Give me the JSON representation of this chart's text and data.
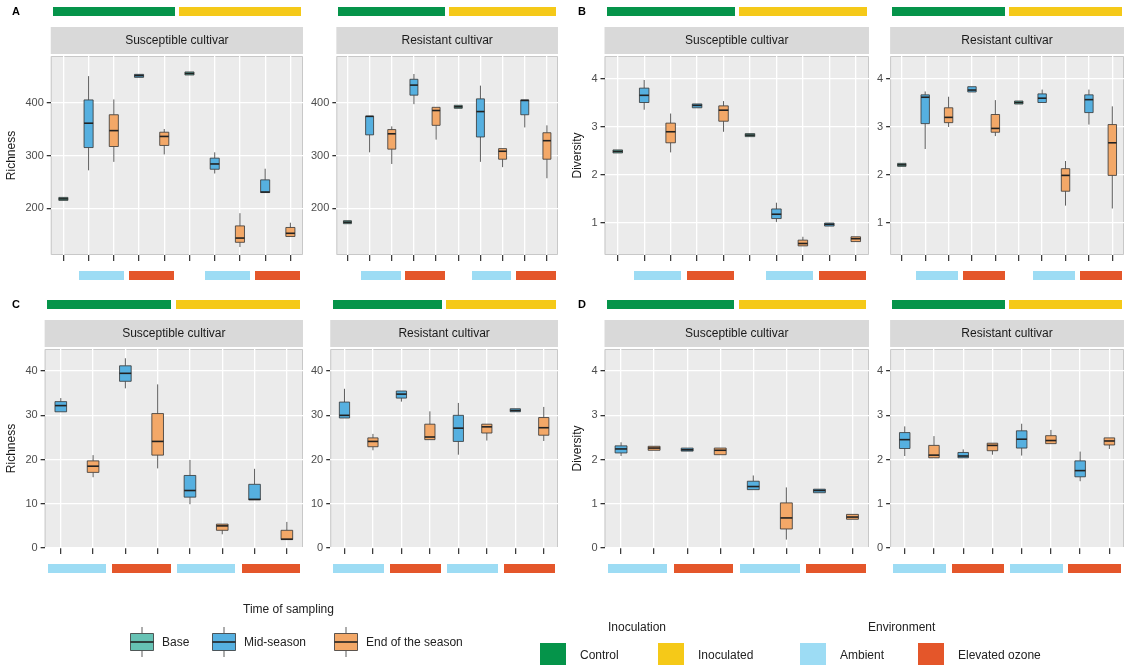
{
  "chart_data": [
    {
      "type": "box",
      "title": "Susceptible cultivar",
      "ylabel": "Richness",
      "annotations": [
        "A"
      ],
      "categories": [
        null,
        null,
        null,
        null,
        null,
        null,
        null,
        null,
        null,
        null
      ],
      "ylim": [
        112,
        488
      ],
      "yticks": [
        200,
        300,
        400
      ],
      "grid": true,
      "tick_labels": "y",
      "legend": "bottom",
      "legend_title": "Time of sampling",
      "series": [
        {
          "name": "Base",
          "color": "#66c2b4",
          "boxes": [
            {
              "low": 218,
              "q1": 218,
              "median": 218,
              "q3": 218,
              "high": 218
            },
            null,
            null,
            null,
            null,
            {
              "low": 455,
              "q1": 455,
              "median": 455,
              "q3": 455,
              "high": 455
            },
            null,
            null,
            null,
            null
          ]
        },
        {
          "name": "Mid-season",
          "color": "#56b0e0",
          "boxes": [
            null,
            {
              "low": 272,
              "q1": 315,
              "median": 361,
              "q3": 405,
              "high": 450
            },
            null,
            {
              "low": 449,
              "q1": 449,
              "median": 451,
              "q3": 452,
              "high": 452
            },
            null,
            null,
            {
              "low": 266,
              "q1": 274,
              "median": 284,
              "q3": 295,
              "high": 306
            },
            null,
            {
              "low": 230,
              "q1": 230,
              "median": 231,
              "q3": 254,
              "high": 275
            },
            null
          ]
        },
        {
          "name": "End of the season",
          "color": "#f3a868",
          "boxes": [
            null,
            null,
            {
              "low": 288,
              "q1": 317,
              "median": 347,
              "q3": 377,
              "high": 406
            },
            null,
            {
              "low": 302,
              "q1": 319,
              "median": 336,
              "q3": 344,
              "high": 350
            },
            null,
            null,
            {
              "low": 127,
              "q1": 136,
              "median": 144,
              "q3": 167,
              "high": 191
            },
            null,
            {
              "low": 147,
              "q1": 147,
              "median": 153,
              "q3": 164,
              "high": 173
            }
          ]
        }
      ]
    },
    {
      "type": "box",
      "title": "Resistant cultivar",
      "categories": [
        null,
        null,
        null,
        null,
        null,
        null,
        null,
        null,
        null,
        null
      ],
      "ylim": [
        112,
        488
      ],
      "yticks": [
        200,
        300,
        400
      ],
      "grid": true,
      "tick_labels": "y",
      "series": [
        {
          "color": "#66c2b4",
          "boxes": [
            {
              "low": 174,
              "q1": 174,
              "median": 174,
              "q3": 174,
              "high": 174
            },
            null,
            null,
            null,
            null,
            {
              "low": 392,
              "q1": 392,
              "median": 392,
              "q3": 392,
              "high": 392
            },
            null,
            null,
            null,
            null
          ]
        },
        {
          "color": "#56b0e0",
          "boxes": [
            null,
            {
              "low": 306,
              "q1": 339,
              "median": 374,
              "q3": 374,
              "high": 374
            },
            null,
            {
              "low": 397,
              "q1": 414,
              "median": 433,
              "q3": 444,
              "high": 454
            },
            null,
            null,
            {
              "low": 288,
              "q1": 335,
              "median": 383,
              "q3": 407,
              "high": 432
            },
            null,
            {
              "low": 353,
              "q1": 377,
              "median": 404,
              "q3": 405,
              "high": 405
            },
            null
          ]
        },
        {
          "color": "#f3a868",
          "boxes": [
            null,
            null,
            {
              "low": 284,
              "q1": 312,
              "median": 341,
              "q3": 349,
              "high": 355
            },
            null,
            {
              "low": 330,
              "q1": 357,
              "median": 385,
              "q3": 391,
              "high": 391
            },
            null,
            null,
            {
              "low": 278,
              "q1": 293,
              "median": 308,
              "q3": 313,
              "high": 313
            },
            null,
            {
              "low": 257,
              "q1": 293,
              "median": 328,
              "q3": 343,
              "high": 357
            }
          ]
        }
      ]
    },
    {
      "type": "box",
      "title": "Susceptible cultivar",
      "ylabel": "Diversity",
      "annotations": [
        "B"
      ],
      "categories": [
        null,
        null,
        null,
        null,
        null,
        null,
        null,
        null,
        null,
        null
      ],
      "ylim": [
        0.33,
        4.48
      ],
      "yticks": [
        1,
        2,
        3,
        4
      ],
      "grid": true,
      "tick_labels": "y",
      "series": [
        {
          "color": "#66c2b4",
          "boxes": [
            {
              "low": 2.49,
              "q1": 2.49,
              "median": 2.49,
              "q3": 2.49,
              "high": 2.49
            },
            null,
            null,
            null,
            null,
            {
              "low": 2.83,
              "q1": 2.83,
              "median": 2.83,
              "q3": 2.83,
              "high": 2.83
            },
            null,
            null,
            null,
            null
          ]
        },
        {
          "color": "#56b0e0",
          "boxes": [
            null,
            {
              "low": 3.36,
              "q1": 3.51,
              "median": 3.66,
              "q3": 3.81,
              "high": 3.98
            },
            null,
            {
              "low": 3.4,
              "q1": 3.4,
              "median": 3.45,
              "q3": 3.48,
              "high": 3.48
            },
            null,
            null,
            {
              "low": 1.02,
              "q1": 1.09,
              "median": 1.18,
              "q3": 1.29,
              "high": 1.42
            },
            null,
            {
              "low": 0.94,
              "q1": 0.94,
              "median": 0.97,
              "q3": 0.99,
              "high": 0.99
            },
            null
          ]
        },
        {
          "color": "#f3a868",
          "boxes": [
            null,
            null,
            {
              "low": 2.47,
              "q1": 2.67,
              "median": 2.9,
              "q3": 3.08,
              "high": 3.28
            },
            null,
            {
              "low": 2.9,
              "q1": 3.12,
              "median": 3.35,
              "q3": 3.44,
              "high": 3.54
            },
            null,
            null,
            {
              "low": 0.52,
              "q1": 0.52,
              "median": 0.57,
              "q3": 0.64,
              "high": 0.71
            },
            null,
            {
              "low": 0.61,
              "q1": 0.61,
              "median": 0.67,
              "q3": 0.71,
              "high": 0.71
            }
          ]
        }
      ]
    },
    {
      "type": "box",
      "title": "Resistant cultivar",
      "categories": [
        null,
        null,
        null,
        null,
        null,
        null,
        null,
        null,
        null,
        null
      ],
      "ylim": [
        0.33,
        4.48
      ],
      "yticks": [
        1,
        2,
        3,
        4
      ],
      "grid": true,
      "tick_labels": "y",
      "series": [
        {
          "color": "#66c2b4",
          "boxes": [
            {
              "low": 2.21,
              "q1": 2.21,
              "median": 2.21,
              "q3": 2.21,
              "high": 2.21
            },
            null,
            null,
            null,
            null,
            {
              "low": 3.51,
              "q1": 3.51,
              "median": 3.51,
              "q3": 3.51,
              "high": 3.51
            },
            null,
            null,
            null,
            null
          ]
        },
        {
          "color": "#56b0e0",
          "boxes": [
            null,
            {
              "low": 2.54,
              "q1": 3.07,
              "median": 3.62,
              "q3": 3.67,
              "high": 3.74
            },
            null,
            {
              "low": 3.73,
              "q1": 3.73,
              "median": 3.77,
              "q3": 3.84,
              "high": 3.84
            },
            null,
            null,
            {
              "low": 3.51,
              "q1": 3.51,
              "median": 3.6,
              "q3": 3.69,
              "high": 3.78
            },
            null,
            {
              "low": 3.05,
              "q1": 3.3,
              "median": 3.57,
              "q3": 3.67,
              "high": 3.78
            },
            null
          ]
        },
        {
          "color": "#f3a868",
          "boxes": [
            null,
            null,
            {
              "low": 3.0,
              "q1": 3.09,
              "median": 3.2,
              "q3": 3.4,
              "high": 3.63
            },
            null,
            {
              "low": 2.81,
              "q1": 2.89,
              "median": 2.97,
              "q3": 3.26,
              "high": 3.56
            },
            null,
            null,
            {
              "low": 1.36,
              "q1": 1.66,
              "median": 1.99,
              "q3": 2.13,
              "high": 2.29
            },
            null,
            {
              "low": 1.3,
              "q1": 1.99,
              "median": 2.67,
              "q3": 3.05,
              "high": 3.43
            }
          ]
        }
      ]
    },
    {
      "type": "box",
      "title": "Susceptible cultivar",
      "ylabel": "Richness",
      "annotations": [
        "C"
      ],
      "categories": [
        null,
        null,
        null,
        null,
        null,
        null,
        null,
        null
      ],
      "ylim": [
        0,
        45
      ],
      "yticks": [
        0,
        10,
        20,
        30,
        40
      ],
      "grid": true,
      "tick_labels": "y",
      "series": [
        {
          "color": "#56b0e0",
          "boxes": [
            {
              "low": 30.8,
              "q1": 30.8,
              "median": 32.2,
              "q3": 33.1,
              "high": 33.9
            },
            null,
            {
              "low": 36.1,
              "q1": 37.7,
              "median": 39.5,
              "q3": 41.2,
              "high": 42.9
            },
            null,
            {
              "low": 9.9,
              "q1": 11.5,
              "median": 13,
              "q3": 16.4,
              "high": 19.9
            },
            null,
            {
              "low": 10.9,
              "q1": 10.9,
              "median": 11,
              "q3": 14.4,
              "high": 17.9
            },
            null
          ]
        },
        {
          "color": "#f3a868",
          "boxes": [
            null,
            {
              "low": 16,
              "q1": 17.1,
              "median": 18.5,
              "q3": 19.7,
              "high": 21
            },
            null,
            {
              "low": 18,
              "q1": 21,
              "median": 24.1,
              "q3": 30.4,
              "high": 37
            },
            null,
            {
              "low": 3.1,
              "q1": 4,
              "median": 5,
              "q3": 5.4,
              "high": 5.4
            },
            null,
            {
              "low": 1.9,
              "q1": 1.9,
              "median": 2,
              "q3": 4,
              "high": 5.9
            }
          ]
        }
      ]
    },
    {
      "type": "box",
      "title": "Resistant cultivar",
      "categories": [
        null,
        null,
        null,
        null,
        null,
        null,
        null,
        null
      ],
      "ylim": [
        0,
        45
      ],
      "yticks": [
        0,
        10,
        20,
        30,
        40
      ],
      "grid": true,
      "tick_labels": "y",
      "series": [
        {
          "color": "#56b0e0",
          "boxes": [
            {
              "low": 29.4,
              "q1": 29.4,
              "median": 30,
              "q3": 33,
              "high": 36
            },
            null,
            {
              "low": 33.1,
              "q1": 33.9,
              "median": 34.8,
              "q3": 35.5,
              "high": 35.5
            },
            null,
            {
              "low": 21.1,
              "q1": 24.1,
              "median": 27.1,
              "q3": 30,
              "high": 32.8
            },
            null,
            {
              "low": 30.9,
              "q1": 30.9,
              "median": 31.1,
              "q3": 31.4,
              "high": 31.4
            },
            null
          ]
        },
        {
          "color": "#f3a868",
          "boxes": [
            null,
            {
              "low": 22.1,
              "q1": 22.9,
              "median": 24.1,
              "q3": 24.9,
              "high": 25.8
            },
            null,
            {
              "low": 24.5,
              "q1": 24.5,
              "median": 25.1,
              "q3": 28,
              "high": 30.9
            },
            null,
            {
              "low": 24.3,
              "q1": 26,
              "median": 27.4,
              "q3": 28,
              "high": 28
            },
            null,
            {
              "low": 24.2,
              "q1": 25.5,
              "median": 27.2,
              "q3": 29.5,
              "high": 31.9
            }
          ]
        }
      ]
    },
    {
      "type": "box",
      "title": "Susceptible cultivar",
      "ylabel": "Diversity",
      "annotations": [
        "D"
      ],
      "categories": [
        null,
        null,
        null,
        null,
        null,
        null,
        null,
        null
      ],
      "ylim": [
        0,
        4.5
      ],
      "yticks": [
        0,
        1,
        2,
        3,
        4
      ],
      "grid": true,
      "tick_labels": "y",
      "series": [
        {
          "color": "#56b0e0",
          "boxes": [
            {
              "low": 2.08,
              "q1": 2.15,
              "median": 2.24,
              "q3": 2.31,
              "high": 2.39
            },
            null,
            {
              "low": 2.22,
              "q1": 2.22,
              "median": 2.22,
              "q3": 2.23,
              "high": 2.23
            },
            null,
            {
              "low": 1.32,
              "q1": 1.32,
              "median": 1.39,
              "q3": 1.51,
              "high": 1.64
            },
            null,
            {
              "low": 1.25,
              "q1": 1.25,
              "median": 1.3,
              "q3": 1.33,
              "high": 1.33
            },
            null
          ]
        },
        {
          "color": "#f3a868",
          "boxes": [
            null,
            {
              "low": 2.21,
              "q1": 2.21,
              "median": 2.26,
              "q3": 2.3,
              "high": 2.3
            },
            null,
            {
              "low": 2.11,
              "q1": 2.11,
              "median": 2.21,
              "q3": 2.26,
              "high": 2.26
            },
            null,
            {
              "low": 0.19,
              "q1": 0.43,
              "median": 0.68,
              "q3": 1.02,
              "high": 1.37
            },
            null,
            {
              "low": 0.65,
              "q1": 0.65,
              "median": 0.7,
              "q3": 0.76,
              "high": 0.76
            }
          ]
        }
      ]
    },
    {
      "type": "box",
      "title": "Resistant cultivar",
      "categories": [
        null,
        null,
        null,
        null,
        null,
        null,
        null,
        null
      ],
      "ylim": [
        0,
        4.5
      ],
      "yticks": [
        0,
        1,
        2,
        3,
        4
      ],
      "grid": true,
      "tick_labels": "y",
      "series": [
        {
          "color": "#56b0e0",
          "boxes": [
            {
              "low": 2.08,
              "q1": 2.25,
              "median": 2.45,
              "q3": 2.61,
              "high": 2.75
            },
            null,
            {
              "low": 2.04,
              "q1": 2.04,
              "median": 2.08,
              "q3": 2.16,
              "high": 2.23
            },
            null,
            {
              "low": 2.09,
              "q1": 2.26,
              "median": 2.46,
              "q3": 2.65,
              "high": 2.81
            },
            null,
            {
              "low": 1.51,
              "q1": 1.61,
              "median": 1.75,
              "q3": 1.97,
              "high": 2.18
            },
            null
          ]
        },
        {
          "color": "#f3a868",
          "boxes": [
            null,
            {
              "low": 2.04,
              "q1": 2.04,
              "median": 2.1,
              "q3": 2.32,
              "high": 2.53
            },
            null,
            {
              "low": 2.11,
              "q1": 2.2,
              "median": 2.32,
              "q3": 2.37,
              "high": 2.37
            },
            null,
            {
              "low": 2.36,
              "q1": 2.36,
              "median": 2.43,
              "q3": 2.54,
              "high": 2.67
            },
            null,
            {
              "low": 2.24,
              "q1": 2.33,
              "median": 2.42,
              "q3": 2.49,
              "high": 2.49
            }
          ]
        }
      ]
    },
    {
      "type": "other",
      "annotations": [
        "Inoculation",
        "Environment"
      ],
      "categories": [
        "Control",
        "Inoculated",
        "Ambient",
        "Elevated ozone"
      ],
      "colors": [
        "#05944a",
        "#f5c918",
        "#9ddcf4",
        "#e4562a"
      ]
    }
  ]
}
